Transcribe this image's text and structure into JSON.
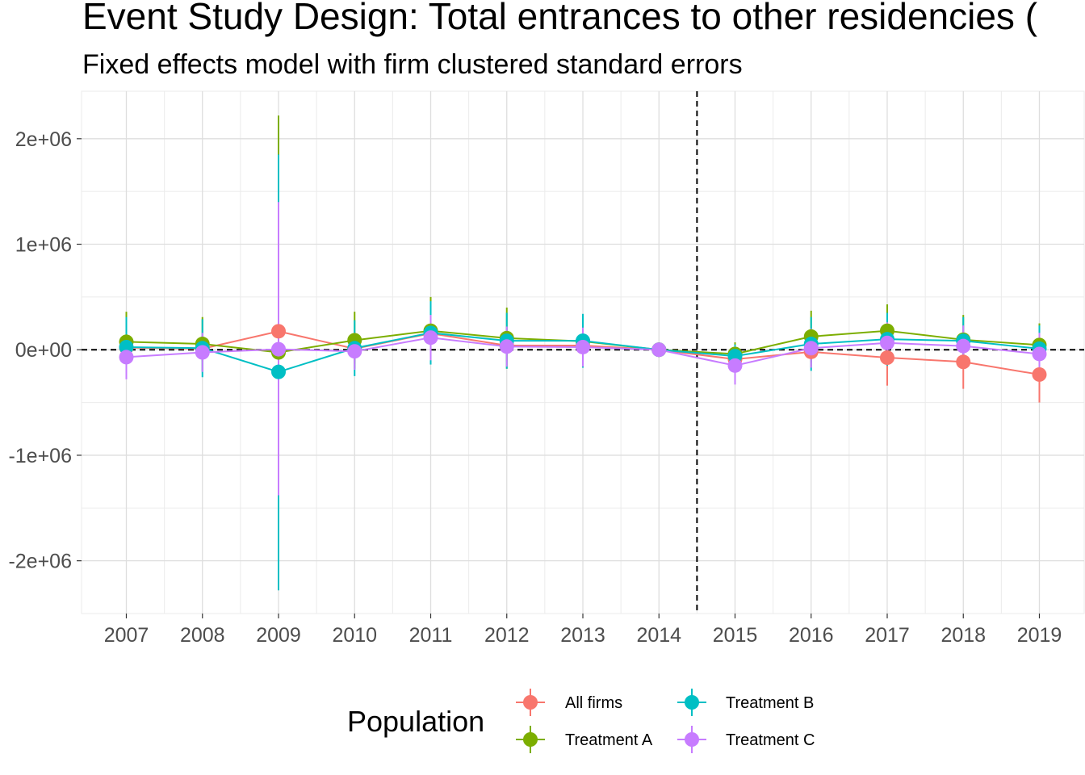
{
  "chart_data": {
    "type": "line",
    "title": "Event Study Design: Total entrances to other residencies (",
    "subtitle": "Fixed effects model with firm clustered standard errors",
    "xlabel": "",
    "ylabel": "",
    "categories": [
      "2007",
      "2008",
      "2009",
      "2010",
      "2011",
      "2012",
      "2013",
      "2014",
      "2015",
      "2016",
      "2017",
      "2018",
      "2019"
    ],
    "y_ticks": [
      {
        "value": 2000000,
        "label": "2e+06"
      },
      {
        "value": 1000000,
        "label": "1e+06"
      },
      {
        "value": 0,
        "label": "0e+00"
      },
      {
        "value": -1000000,
        "label": "-1e+06"
      },
      {
        "value": -2000000,
        "label": "-2e+06"
      }
    ],
    "ylim": [
      -2500000,
      2450000
    ],
    "event_line_between": [
      "2014",
      "2015"
    ],
    "zero_reference_line": 0,
    "grid": true,
    "legend": {
      "title": "Population",
      "position": "bottom"
    },
    "series": [
      {
        "name": "All firms",
        "color": "#F8766D",
        "values": [
          20000,
          10000,
          175000,
          10000,
          155000,
          40000,
          40000,
          0,
          -90000,
          -20000,
          -75000,
          -115000,
          -235000
        ],
        "lower": [
          -120000,
          -110000,
          -150000,
          -130000,
          -120000,
          -110000,
          -110000,
          0,
          -220000,
          -170000,
          -340000,
          -370000,
          -500000
        ],
        "upper": [
          160000,
          130000,
          500000,
          150000,
          430000,
          190000,
          190000,
          0,
          40000,
          130000,
          190000,
          140000,
          30000
        ]
      },
      {
        "name": "Treatment A",
        "color": "#7CAE00",
        "values": [
          75000,
          55000,
          -25000,
          90000,
          180000,
          110000,
          80000,
          0,
          -40000,
          125000,
          180000,
          95000,
          45000
        ],
        "lower": [
          -210000,
          -200000,
          -2270000,
          -180000,
          -140000,
          -180000,
          -170000,
          0,
          -150000,
          -120000,
          -80000,
          -140000,
          -160000
        ],
        "upper": [
          360000,
          310000,
          2220000,
          360000,
          500000,
          400000,
          330000,
          0,
          70000,
          370000,
          430000,
          330000,
          250000
        ]
      },
      {
        "name": "Treatment B",
        "color": "#00BFC4",
        "values": [
          25000,
          15000,
          -210000,
          15000,
          160000,
          85000,
          85000,
          0,
          -60000,
          55000,
          100000,
          85000,
          10000
        ],
        "lower": [
          -260000,
          -260000,
          -2280000,
          -250000,
          -140000,
          -180000,
          -170000,
          0,
          -170000,
          -200000,
          -150000,
          -140000,
          -210000
        ],
        "upper": [
          310000,
          290000,
          1850000,
          280000,
          460000,
          350000,
          340000,
          0,
          50000,
          310000,
          350000,
          310000,
          230000
        ]
      },
      {
        "name": "Treatment C",
        "color": "#C77CFF",
        "values": [
          -70000,
          -25000,
          5000,
          -15000,
          115000,
          30000,
          25000,
          0,
          -150000,
          15000,
          65000,
          35000,
          -40000
        ],
        "lower": [
          -280000,
          -210000,
          -1380000,
          -190000,
          -100000,
          -160000,
          -160000,
          0,
          -330000,
          -170000,
          -130000,
          -160000,
          -240000
        ],
        "upper": [
          140000,
          160000,
          1400000,
          160000,
          330000,
          220000,
          210000,
          0,
          30000,
          200000,
          260000,
          230000,
          160000
        ]
      }
    ]
  }
}
